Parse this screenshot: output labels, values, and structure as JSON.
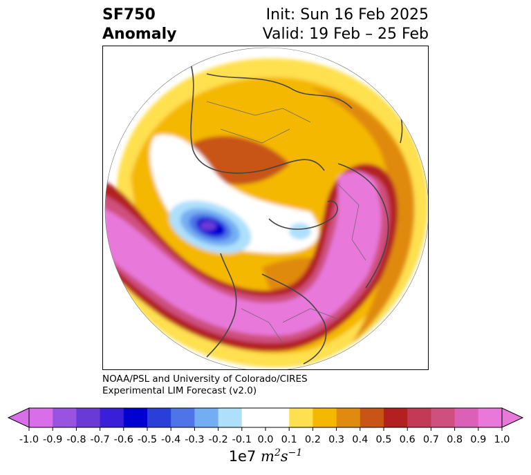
{
  "title": {
    "line1_left": "SF750",
    "line2_left": "Anomaly",
    "line1_right": "Init: Sun 16 Feb 2025",
    "line2_right": "Valid: 19 Feb – 25 Feb"
  },
  "credit": {
    "line1": "NOAA/PSL and University of Colorado/CIRES",
    "line2": "Experimental LIM Forecast (v2.0)"
  },
  "colorbar": {
    "ticks": [
      "-1.0",
      "-0.9",
      "-0.8",
      "-0.7",
      "-0.6",
      "-0.5",
      "-0.4",
      "-0.3",
      "-0.2",
      "-0.1",
      "0.0",
      "0.1",
      "0.2",
      "0.3",
      "0.4",
      "0.5",
      "0.6",
      "0.7",
      "0.8",
      "0.9",
      "1.0"
    ],
    "colors": [
      "#d86fe8",
      "#9a52e0",
      "#6a3ad6",
      "#3a1fd8",
      "#0000d0",
      "#2a3ed8",
      "#4e74e8",
      "#74aef2",
      "#aee0fb",
      "#ffffff",
      "#ffffff",
      "#ffe050",
      "#f5b800",
      "#e08a10",
      "#c85515",
      "#b22020",
      "#c23a55",
      "#cf4f7e",
      "#dc60b8",
      "#e878da"
    ],
    "under_color": "#d86fe8",
    "over_color": "#e878da",
    "unit_prefix": "1e7",
    "unit_m": "m",
    "unit_m_exp": "2",
    "unit_s": "s",
    "unit_s_exp": "−1"
  },
  "map": {
    "projection": "polar stereographic (North Pole)",
    "field": "SF750 anomaly"
  }
}
